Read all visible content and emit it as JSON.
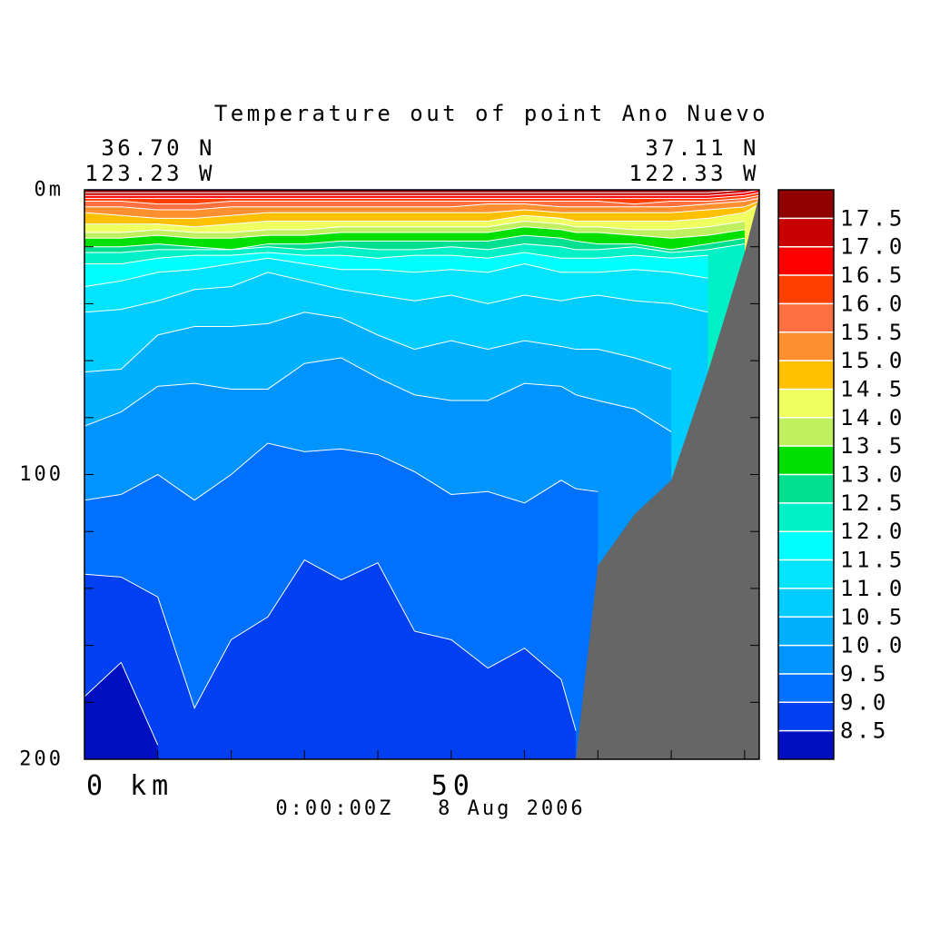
{
  "chart_data": {
    "type": "contour",
    "title": "Temperature out of point Ano Nuevo",
    "left_lat": "36.70 N",
    "left_lon": "123.23 W",
    "right_lat": "37.11 N",
    "right_lon": "122.33 W",
    "timestamp": "0:00:00Z   8 Aug 2006",
    "xlim": [
      0,
      92
    ],
    "ylim": [
      0,
      200
    ],
    "yreversed": true,
    "xticks": [
      {
        "value": 0,
        "label": "0 km"
      },
      50
    ],
    "xminor_ticks": [
      10,
      20,
      30,
      40,
      60,
      70,
      80,
      90
    ],
    "yticks": [
      {
        "value": 0,
        "label": "0m"
      },
      100,
      200
    ],
    "yminor_ticks": [
      20,
      40,
      60,
      80,
      120,
      140,
      160,
      180
    ],
    "levels": [
      8.5,
      {
        "value": 9,
        "label": "9.0"
      },
      9.5,
      {
        "value": 10,
        "label": "10.0"
      },
      10.5,
      {
        "value": 11,
        "label": "11.0"
      },
      11.5,
      {
        "value": 12,
        "label": "12.0"
      },
      12.5,
      {
        "value": 13,
        "label": "13.0"
      },
      13.5,
      {
        "value": 14,
        "label": "14.0"
      },
      14.5,
      {
        "value": 15,
        "label": "15.0"
      },
      15.5,
      {
        "value": 16,
        "label": "16.0"
      },
      16.5,
      {
        "value": 17,
        "label": "17.0"
      },
      17.5
    ],
    "colors": [
      "#0010c0",
      "#0040f0",
      "#0070ff",
      "#0094ff",
      "#00b0ff",
      "#00ccff",
      "#00e4ff",
      "#00ffff",
      "#00f0c8",
      "#00e090",
      "#00e000",
      "#c0f060",
      "#f0ff60",
      "#ffc000",
      "#ff9030",
      "#ff7040",
      "#ff4000",
      "#ff0000",
      "#c80000",
      "#900000"
    ],
    "contour_line_color": "#ffffff",
    "land_color": "#666666",
    "x": [
      0,
      5,
      10,
      15,
      20,
      25,
      30,
      35,
      40,
      45,
      50,
      55,
      60,
      65,
      67,
      70,
      75,
      80,
      85,
      90,
      92
    ],
    "isotherms": [
      [
        178,
        166,
        195,
        null,
        null,
        null,
        null,
        null,
        null,
        null,
        null,
        null,
        null,
        null,
        null,
        null,
        null,
        null,
        null,
        null,
        null
      ],
      [
        135,
        136,
        143,
        182,
        158,
        150,
        130,
        137,
        131,
        155,
        158,
        168,
        161,
        172,
        190,
        null,
        null,
        null,
        null,
        null,
        null
      ],
      [
        109,
        107,
        100,
        109,
        100,
        89,
        92,
        91,
        93,
        99,
        107,
        106,
        110,
        102,
        105,
        106,
        null,
        null,
        null,
        null,
        null
      ],
      [
        83,
        78,
        69,
        68,
        70,
        70,
        61,
        59,
        66,
        72,
        74,
        74,
        68,
        69,
        72,
        74,
        77,
        85,
        null,
        null,
        null
      ],
      [
        64,
        63,
        51,
        48,
        48,
        47,
        43,
        45,
        51,
        56,
        53,
        56,
        53,
        55,
        56,
        56,
        59,
        63,
        null,
        null,
        null
      ],
      [
        43,
        42,
        39,
        35,
        34,
        29,
        32,
        35,
        37,
        39,
        37,
        40,
        37,
        39,
        38,
        37,
        39,
        40,
        43,
        null,
        null
      ],
      [
        34,
        32,
        29,
        28,
        26,
        24,
        26,
        28,
        28,
        29,
        28,
        29,
        26,
        29,
        29,
        29,
        28,
        29,
        31,
        null,
        null
      ],
      [
        26,
        26,
        24,
        23,
        23,
        22,
        23,
        23,
        24,
        23,
        23,
        24,
        22,
        24,
        24,
        24,
        23,
        24,
        23,
        null,
        null
      ],
      [
        22,
        22,
        21,
        21,
        21,
        20,
        21,
        20,
        21,
        21,
        20,
        21,
        19,
        20,
        21,
        21,
        20,
        22,
        21,
        19,
        null
      ],
      [
        20,
        20,
        19,
        20,
        21,
        19,
        19,
        18,
        18,
        18,
        18,
        18,
        16,
        17,
        18,
        19,
        19,
        21,
        19,
        17,
        null
      ],
      [
        17,
        17,
        16,
        17,
        17,
        16,
        16,
        15,
        15,
        15,
        15,
        15,
        13,
        14,
        15,
        15,
        16,
        17,
        16,
        14,
        null
      ],
      [
        15,
        15,
        14,
        15,
        15,
        14,
        14,
        13,
        13,
        13,
        13,
        13,
        11,
        12,
        13,
        13,
        14,
        14,
        13,
        11,
        null
      ],
      [
        12,
        12,
        12,
        13,
        12,
        11,
        11,
        11,
        11,
        11,
        11,
        11,
        9,
        10,
        11,
        11,
        11,
        11,
        10,
        8,
        5
      ],
      [
        8,
        9,
        10,
        10,
        9,
        8,
        8,
        8,
        8,
        8,
        8,
        8,
        7,
        8,
        8,
        8,
        8,
        8,
        7,
        6,
        4
      ],
      [
        6,
        6,
        7,
        7,
        6,
        6,
        6,
        6,
        6,
        6,
        6,
        5,
        5,
        6,
        6,
        6,
        6,
        6,
        5,
        4,
        3
      ],
      [
        4,
        4,
        5,
        5,
        4,
        4,
        4,
        4,
        4,
        4,
        4,
        4,
        4,
        4,
        4,
        4,
        5,
        4,
        4,
        3,
        2
      ],
      [
        3,
        3,
        3,
        3,
        3,
        3,
        3,
        3,
        3,
        3,
        3,
        3,
        3,
        3,
        3,
        3,
        3,
        3,
        3,
        2,
        1
      ],
      [
        2,
        2,
        2,
        2,
        2,
        2,
        2,
        2,
        2,
        2,
        2,
        2,
        2,
        2,
        2,
        2,
        2,
        2,
        2,
        1,
        0
      ],
      [
        1,
        1,
        1,
        1,
        1,
        1,
        1,
        1,
        1,
        1,
        1,
        1,
        1,
        1,
        1,
        1,
        1,
        1,
        1,
        0,
        0
      ]
    ],
    "bottom_depth": [
      null,
      null,
      null,
      null,
      null,
      null,
      null,
      null,
      null,
      null,
      null,
      null,
      null,
      null,
      200,
      132,
      114,
      102,
      64,
      22,
      2
    ]
  }
}
